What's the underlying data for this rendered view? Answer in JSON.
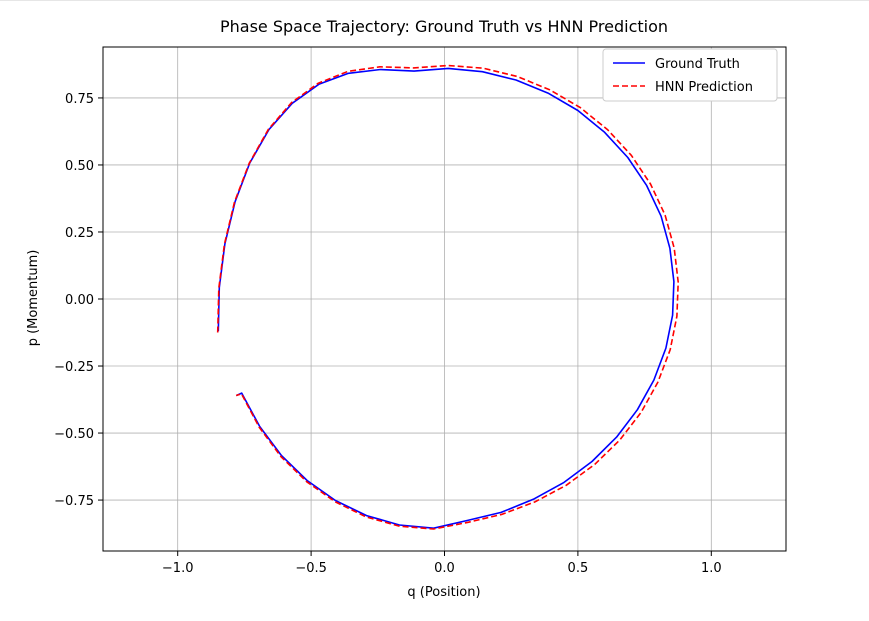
{
  "chart_data": {
    "type": "line",
    "title": "Phase Space Trajectory: Ground Truth vs HNN Prediction",
    "xlabel": "q (Position)",
    "ylabel": "p (Momentum)",
    "xlim": [
      -1.28,
      1.28
    ],
    "ylim": [
      -0.94,
      0.94
    ],
    "x_ticks": [
      -1.0,
      -0.5,
      0.0,
      0.5,
      1.0
    ],
    "x_tick_labels": [
      "−1.0",
      "−0.5",
      "0.0",
      "0.5",
      "1.0"
    ],
    "y_ticks": [
      0.75,
      0.5,
      0.25,
      0.0,
      -0.25,
      -0.5,
      -0.75
    ],
    "y_tick_labels": [
      "0.75",
      "0.50",
      "0.25",
      "0.00",
      "−0.25",
      "−0.50",
      "−0.75"
    ],
    "grid": true,
    "legend_position": "top-right",
    "series": [
      {
        "name": "Ground Truth",
        "color": "#0000ff",
        "style": "solid",
        "x": [
          -0.848,
          -0.844,
          -0.823,
          -0.785,
          -0.73,
          -0.658,
          -0.571,
          -0.471,
          -0.36,
          -0.24,
          -0.114,
          0.014,
          0.142,
          0.268,
          0.388,
          0.5,
          0.6,
          0.687,
          0.758,
          0.812,
          0.845,
          0.86,
          0.855,
          0.83,
          0.785,
          0.723,
          0.645,
          0.553,
          0.448,
          0.333,
          0.212,
          0.087,
          -0.041,
          -0.169,
          -0.292,
          -0.408,
          -0.515,
          -0.611,
          -0.693,
          -0.76,
          -0.78
        ],
        "y": [
          -0.12,
          0.043,
          0.206,
          0.363,
          0.507,
          0.632,
          0.73,
          0.801,
          0.842,
          0.856,
          0.85,
          0.86,
          0.848,
          0.817,
          0.768,
          0.703,
          0.622,
          0.528,
          0.423,
          0.309,
          0.189,
          0.065,
          -0.06,
          -0.183,
          -0.302,
          -0.413,
          -0.515,
          -0.606,
          -0.684,
          -0.747,
          -0.796,
          -0.826,
          -0.855,
          -0.843,
          -0.808,
          -0.752,
          -0.677,
          -0.584,
          -0.475,
          -0.351,
          -0.36
        ]
      },
      {
        "name": "HNN Prediction",
        "color": "#ff0000",
        "style": "dashed",
        "x": [
          -0.85,
          -0.846,
          -0.825,
          -0.787,
          -0.732,
          -0.66,
          -0.573,
          -0.473,
          -0.362,
          -0.242,
          -0.116,
          0.014,
          0.145,
          0.273,
          0.395,
          0.509,
          0.611,
          0.7,
          0.772,
          0.827,
          0.861,
          0.876,
          0.871,
          0.846,
          0.8,
          0.737,
          0.657,
          0.563,
          0.456,
          0.339,
          0.216,
          0.089,
          -0.041,
          -0.17,
          -0.293,
          -0.409,
          -0.516,
          -0.612,
          -0.694,
          -0.761,
          -0.781
        ],
        "y": [
          -0.125,
          0.04,
          0.204,
          0.362,
          0.506,
          0.633,
          0.733,
          0.805,
          0.849,
          0.866,
          0.862,
          0.871,
          0.861,
          0.83,
          0.78,
          0.714,
          0.632,
          0.536,
          0.429,
          0.313,
          0.19,
          0.063,
          -0.064,
          -0.189,
          -0.31,
          -0.423,
          -0.526,
          -0.617,
          -0.695,
          -0.757,
          -0.803,
          -0.833,
          -0.858,
          -0.847,
          -0.813,
          -0.757,
          -0.682,
          -0.589,
          -0.479,
          -0.354,
          -0.36
        ]
      }
    ]
  }
}
